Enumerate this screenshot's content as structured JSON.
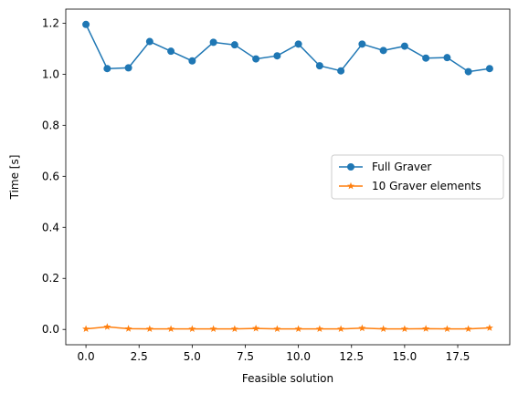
{
  "chart_data": {
    "type": "line",
    "xlabel": "Feasible solution",
    "ylabel": "Time [s]",
    "xlim": [
      -0.95,
      19.95
    ],
    "ylim": [
      -0.06,
      1.255
    ],
    "x_ticks": [
      0.0,
      2.5,
      5.0,
      7.5,
      10.0,
      12.5,
      15.0,
      17.5
    ],
    "x_tick_labels": [
      "0.0",
      "2.5",
      "5.0",
      "7.5",
      "10.0",
      "12.5",
      "15.0",
      "17.5"
    ],
    "y_ticks": [
      0.0,
      0.2,
      0.4,
      0.6,
      0.8,
      1.0,
      1.2
    ],
    "y_tick_labels": [
      "0.0",
      "0.2",
      "0.4",
      "0.6",
      "0.8",
      "1.0",
      "1.2"
    ],
    "grid": false,
    "legend_position": "center-right",
    "x": [
      0,
      1,
      2,
      3,
      4,
      5,
      6,
      7,
      8,
      9,
      10,
      11,
      12,
      13,
      14,
      15,
      16,
      17,
      18,
      19
    ],
    "series": [
      {
        "name": "Full Graver",
        "color": "#1f77b4",
        "marker": "circle",
        "values": [
          1.195,
          1.022,
          1.025,
          1.128,
          1.09,
          1.052,
          1.125,
          1.115,
          1.06,
          1.072,
          1.118,
          1.033,
          1.013,
          1.118,
          1.093,
          1.11,
          1.063,
          1.065,
          1.01,
          1.022
        ]
      },
      {
        "name": "10 Graver elements",
        "color": "#ff7f0e",
        "marker": "star",
        "values": [
          0.002,
          0.01,
          0.003,
          0.002,
          0.002,
          0.002,
          0.002,
          0.002,
          0.004,
          0.002,
          0.002,
          0.002,
          0.002,
          0.005,
          0.002,
          0.002,
          0.003,
          0.002,
          0.002,
          0.006
        ]
      }
    ]
  }
}
